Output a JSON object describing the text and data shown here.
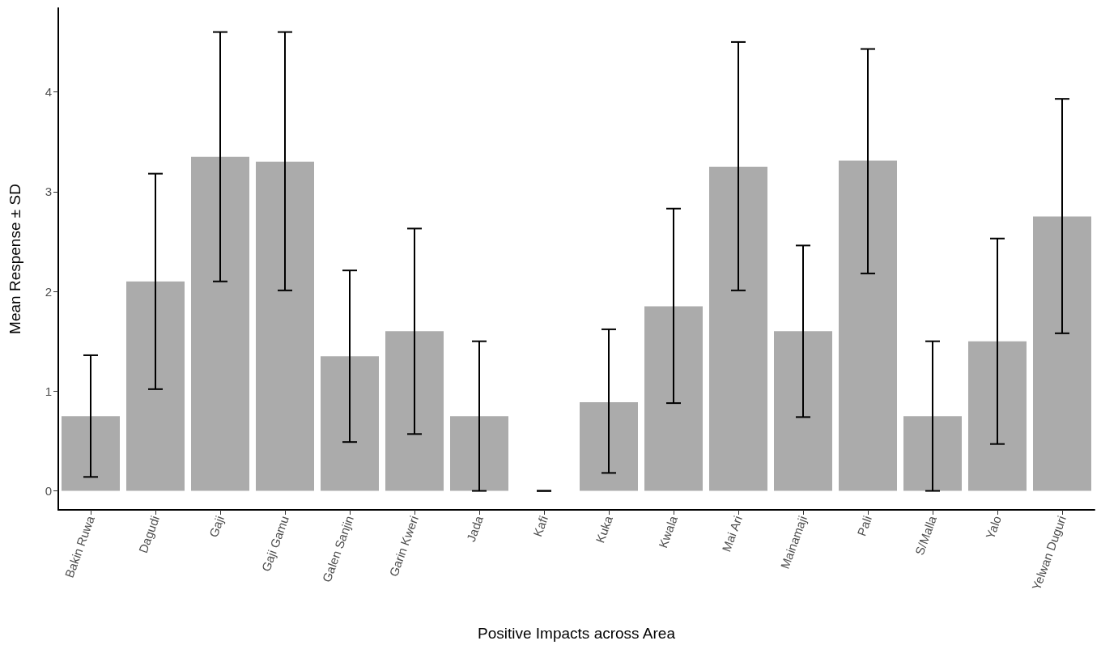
{
  "chart_data": {
    "type": "bar",
    "xlabel": "Positive Impacts across Area",
    "ylabel": "Mean Respense ± SD",
    "categories": [
      "Bakin Ruwa",
      "Dagudi",
      "Gaji",
      "Gaji Gamu",
      "Galen Sanjin",
      "Garin Kweri",
      "Jada",
      "Kafi",
      "Kuka",
      "Kwala",
      "Mai Ari",
      "Mainamaji",
      "Pali",
      "S/Malla",
      "Yalo",
      "Yelwan Duguri"
    ],
    "values": [
      0.75,
      2.1,
      3.35,
      3.3,
      1.35,
      1.6,
      0.75,
      0,
      0.89,
      1.85,
      3.25,
      1.6,
      3.31,
      0.75,
      1.5,
      2.75
    ],
    "errors": [
      [
        0.14,
        1.36
      ],
      [
        1.02,
        3.18
      ],
      [
        2.1,
        4.6
      ],
      [
        2.01,
        4.6
      ],
      [
        0.49,
        2.21
      ],
      [
        0.57,
        2.63
      ],
      [
        0,
        1.5
      ],
      [
        0,
        0
      ],
      [
        0.18,
        1.62
      ],
      [
        0.88,
        2.83
      ],
      [
        2.01,
        4.5
      ],
      [
        0.74,
        2.46
      ],
      [
        2.18,
        4.43
      ],
      [
        0,
        1.5
      ],
      [
        0.47,
        2.53
      ],
      [
        1.58,
        3.93
      ]
    ],
    "color": "#ababab",
    "ylim": [
      -0.19,
      4.84
    ],
    "yticks": [
      0,
      1,
      2,
      3,
      4
    ],
    "grid": false
  }
}
